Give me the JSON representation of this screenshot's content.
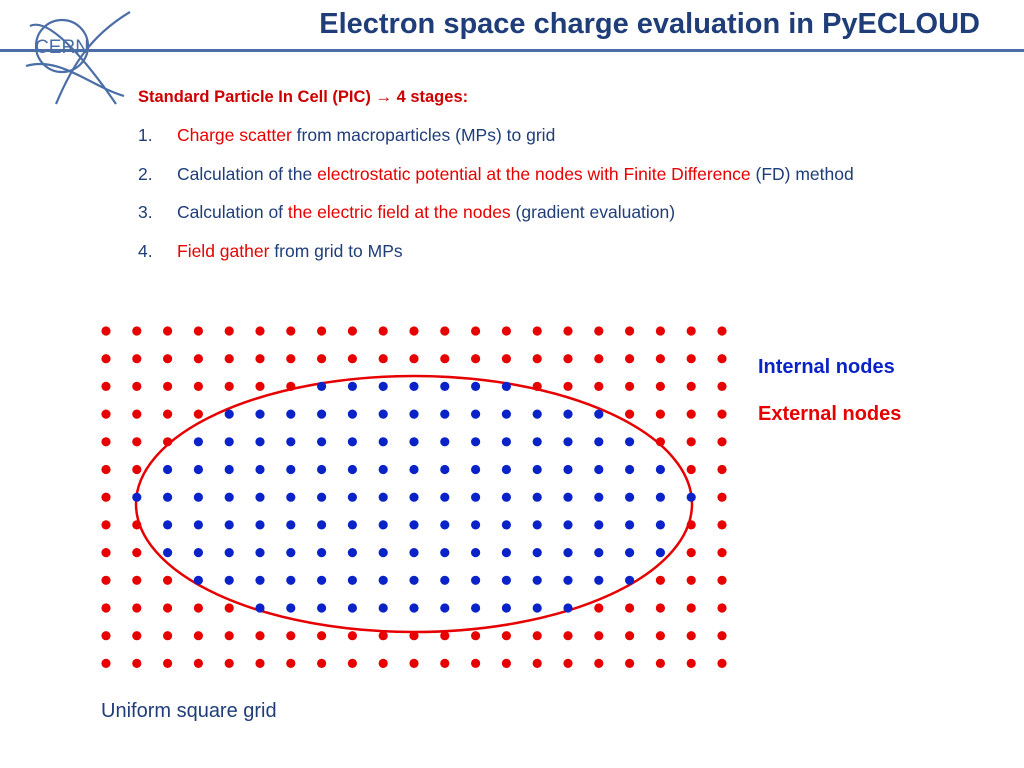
{
  "title": "Electron space charge evaluation in PyECLOUD",
  "logo": {
    "text": "CERN"
  },
  "intro": {
    "text": "Standard Particle In Cell (PIC)",
    "arrow": "→",
    "suffix": "4 stages:"
  },
  "steps": [
    {
      "num": "1.",
      "parts": [
        {
          "text": "Charge scatter",
          "red": true
        },
        {
          "text": " from macroparticles (MPs) to grid",
          "red": false
        }
      ]
    },
    {
      "num": "2.",
      "parts": [
        {
          "text": "Calculation of the ",
          "red": false
        },
        {
          "text": "electrostatic potential at the nodes with Finite Difference",
          "red": true
        },
        {
          "text": " (FD) method",
          "red": false
        }
      ]
    },
    {
      "num": "3.",
      "parts": [
        {
          "text": "Calculation of ",
          "red": false
        },
        {
          "text": "the electric field at the nodes",
          "red": true
        },
        {
          "text": " (gradient evaluation)",
          "red": false
        }
      ]
    },
    {
      "num": "4.",
      "parts": [
        {
          "text": "Field gather",
          "red": true
        },
        {
          "text": " from grid to MPs",
          "red": false
        }
      ]
    }
  ],
  "legend": {
    "internal": "Internal nodes",
    "external": "External nodes"
  },
  "caption": "Uniform square grid",
  "colors": {
    "title": "#1f3d78",
    "text": "#1f3d78",
    "red": "#e60000",
    "internal": "#0a23c8",
    "external": "#e60000",
    "header_line": "#4b6ea6"
  },
  "grid": {
    "columns": 21,
    "rows": 13,
    "boundary": "ellipse",
    "internal_node_count": 135,
    "external_node_count": 138
  }
}
